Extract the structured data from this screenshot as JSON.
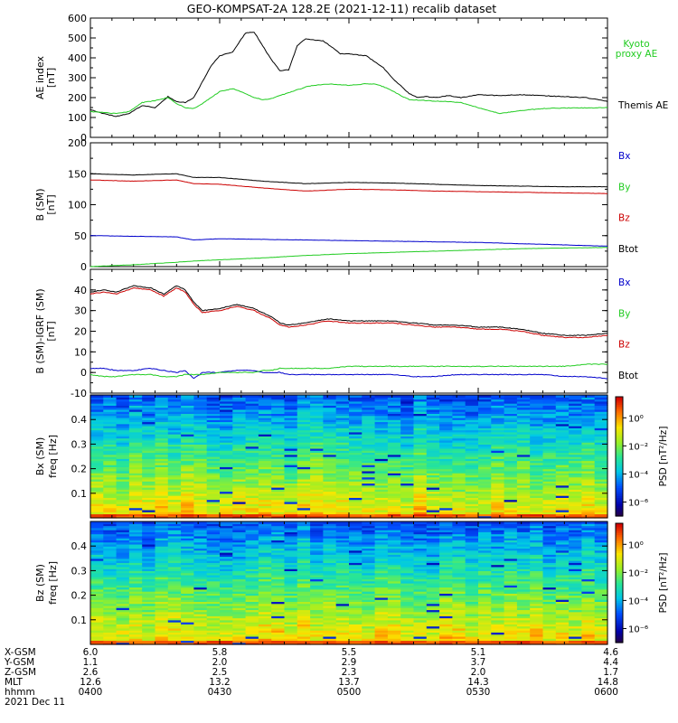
{
  "title": "GEO-KOMPSAT-2A 128.2E (2021-12-11) recalib dataset",
  "colors": {
    "black": "#000000",
    "blue": "#0000cc",
    "green": "#22cc22",
    "red": "#cc0000"
  },
  "chart_data": [
    {
      "type": "line",
      "panel": "ae",
      "ylabel": [
        "AE index",
        "[nT]"
      ],
      "ylim": [
        0,
        600
      ],
      "yticks": [
        0,
        100,
        200,
        300,
        400,
        500,
        600
      ],
      "legend": [
        {
          "label": "Kyoto",
          "color": "green"
        },
        {
          "label": "proxy AE",
          "color": "green"
        },
        {
          "label": "Themis AE",
          "color": "black"
        }
      ],
      "x": [
        0,
        3,
        6,
        9,
        12,
        15,
        18,
        20,
        22,
        24,
        26,
        28,
        30,
        33,
        36,
        38,
        40,
        42,
        44,
        46,
        48,
        49,
        50,
        52,
        54,
        56,
        58,
        60,
        62,
        64,
        66,
        68,
        70,
        72,
        74,
        76,
        78,
        80,
        83,
        86,
        90,
        95,
        100,
        105,
        110,
        115,
        120
      ],
      "series": [
        {
          "name": "Themis AE",
          "color": "black",
          "values": [
            140,
            120,
            105,
            120,
            160,
            150,
            205,
            180,
            175,
            200,
            280,
            360,
            410,
            430,
            525,
            530,
            460,
            390,
            335,
            340,
            460,
            480,
            495,
            490,
            485,
            455,
            420,
            420,
            415,
            410,
            380,
            350,
            300,
            260,
            220,
            200,
            205,
            200,
            210,
            200,
            215,
            210,
            215,
            210,
            205,
            200,
            180
          ]
        },
        {
          "name": "Kyoto proxy AE",
          "color": "green",
          "values": [
            130,
            125,
            120,
            130,
            175,
            185,
            200,
            170,
            150,
            145,
            170,
            200,
            230,
            245,
            220,
            200,
            190,
            195,
            210,
            225,
            240,
            245,
            255,
            262,
            266,
            268,
            265,
            262,
            265,
            270,
            268,
            255,
            235,
            210,
            190,
            188,
            185,
            182,
            180,
            175,
            150,
            120,
            135,
            145,
            148,
            148,
            150
          ]
        }
      ]
    },
    {
      "type": "line",
      "panel": "bsm",
      "ylabel": [
        "B (SM)",
        "[nT]"
      ],
      "ylim": [
        0,
        200
      ],
      "yticks": [
        0,
        50,
        100,
        150,
        200
      ],
      "legend": [
        {
          "label": "Bx",
          "color": "blue"
        },
        {
          "label": "By",
          "color": "green"
        },
        {
          "label": "Bz",
          "color": "red"
        },
        {
          "label": "Btot",
          "color": "black"
        }
      ],
      "x": [
        0,
        10,
        20,
        24,
        30,
        40,
        50,
        60,
        70,
        80,
        90,
        100,
        110,
        120
      ],
      "series": [
        {
          "name": "Btot",
          "color": "black",
          "values": [
            150,
            148,
            150,
            144,
            144,
            138,
            134,
            136,
            135,
            133,
            131,
            130,
            129,
            129
          ]
        },
        {
          "name": "Bz",
          "color": "red",
          "values": [
            140,
            138,
            140,
            134,
            133,
            127,
            122,
            125,
            124,
            122,
            121,
            120,
            119,
            118
          ]
        },
        {
          "name": "Bx",
          "color": "blue",
          "values": [
            50,
            49,
            48,
            43,
            45,
            44,
            43,
            42,
            41,
            40,
            39,
            37,
            35,
            33
          ]
        },
        {
          "name": "By",
          "color": "green",
          "values": [
            0,
            3,
            7,
            9,
            11,
            14,
            18,
            21,
            23,
            25,
            27,
            29,
            30,
            31
          ]
        }
      ]
    },
    {
      "type": "line",
      "panel": "dbsm",
      "ylabel": [
        "B (SM)-IGRF (SM)",
        "[nT]"
      ],
      "ylim": [
        -10,
        50
      ],
      "yticks": [
        -10,
        0,
        10,
        20,
        30,
        40
      ],
      "legend": [
        {
          "label": "Bx",
          "color": "blue"
        },
        {
          "label": "By",
          "color": "green"
        },
        {
          "label": "Bz",
          "color": "red"
        },
        {
          "label": "Btot",
          "color": "black"
        }
      ],
      "x": [
        0,
        3,
        6,
        10,
        14,
        17,
        20,
        22,
        24,
        26,
        30,
        34,
        38,
        40,
        42,
        44,
        46,
        50,
        55,
        60,
        65,
        70,
        75,
        80,
        85,
        90,
        95,
        100,
        105,
        110,
        115,
        120
      ],
      "series": [
        {
          "name": "Btot",
          "color": "black",
          "values": [
            39,
            40,
            39,
            42,
            41,
            38,
            42,
            40,
            34,
            30,
            31,
            33,
            31,
            29,
            27,
            24,
            23,
            24,
            26,
            25,
            25,
            25,
            24,
            23,
            23,
            22,
            22,
            21,
            19,
            18,
            18,
            19
          ]
        },
        {
          "name": "Bz",
          "color": "red",
          "values": [
            38,
            39,
            38,
            41,
            40,
            37,
            41,
            39,
            33,
            29,
            30,
            32,
            30,
            28,
            26,
            23,
            22,
            23,
            25,
            24,
            24,
            24,
            23,
            22,
            22,
            21,
            21,
            20,
            18,
            17,
            17,
            18
          ]
        },
        {
          "name": "Bx",
          "color": "blue",
          "values": [
            2,
            2,
            1,
            1,
            2,
            1,
            0,
            1,
            -3,
            0,
            0,
            1,
            1,
            0,
            0,
            0,
            -1,
            -1,
            -1,
            -1,
            -1,
            -1,
            -2,
            -2,
            -1,
            -1,
            -1,
            -1,
            -1,
            -2,
            -2,
            -3
          ]
        },
        {
          "name": "By",
          "color": "green",
          "values": [
            -1,
            -2,
            -2,
            -1,
            -1,
            -2,
            -2,
            -1,
            -1,
            -1,
            0,
            0,
            0,
            1,
            1,
            2,
            2,
            2,
            2,
            3,
            3,
            3,
            3,
            3,
            3,
            3,
            3,
            3,
            3,
            3,
            4,
            4
          ]
        }
      ]
    },
    {
      "type": "heatmap",
      "panel": "bx_spec",
      "ylabel": [
        "Bx (SM)",
        "freq [Hz]"
      ],
      "ylim": [
        0,
        0.5
      ],
      "yticks": [
        0.1,
        0.2,
        0.3,
        0.4
      ],
      "colorbar": {
        "label": "PSD [nT²/Hz]",
        "ticks": [
          "10⁰",
          "10⁻²",
          "10⁻⁴",
          "10⁻⁶"
        ],
        "range_exp": [
          -7,
          1.5
        ]
      }
    },
    {
      "type": "heatmap",
      "panel": "bz_spec",
      "ylabel": [
        "Bz (SM)",
        "freq [Hz]"
      ],
      "ylim": [
        0,
        0.5
      ],
      "yticks": [
        0.1,
        0.2,
        0.3,
        0.4
      ],
      "colorbar": {
        "label": "PSD [nT²/Hz]",
        "ticks": [
          "10⁰",
          "10⁻²",
          "10⁻⁴",
          "10⁻⁶"
        ],
        "range_exp": [
          -7,
          1.5
        ]
      }
    }
  ],
  "ephemeris": {
    "row_labels": [
      "X-GSM",
      "Y-GSM",
      "Z-GSM",
      "MLT",
      "hhmm"
    ],
    "columns": [
      [
        "6.0",
        "1.1",
        "2.6",
        "12.6",
        "0400"
      ],
      [
        "5.8",
        "2.0",
        "2.5",
        "13.2",
        "0430"
      ],
      [
        "5.5",
        "2.9",
        "2.3",
        "13.7",
        "0500"
      ],
      [
        "5.1",
        "3.7",
        "2.0",
        "14.3",
        "0530"
      ],
      [
        "4.6",
        "4.4",
        "1.7",
        "14.8",
        "0600"
      ]
    ],
    "date": "2021 Dec 11"
  }
}
